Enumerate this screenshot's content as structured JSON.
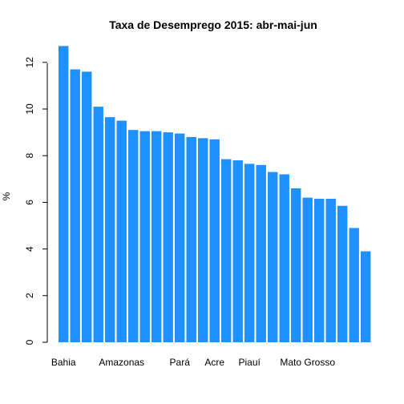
{
  "chart_data": {
    "type": "bar",
    "title": "Taxa de Desemprego 2015: abr-mai-jun",
    "xlabel": "",
    "ylabel": "%",
    "ylim": [
      0,
      12.7
    ],
    "yticks": [
      0,
      2,
      4,
      6,
      8,
      10,
      12
    ],
    "bar_color": "#1E90FF",
    "categories": [
      "Bahia",
      "",
      "",
      "",
      "",
      "Amazonas",
      "",
      "",
      "",
      "",
      "Pará",
      "",
      "",
      "Acre",
      "",
      "",
      "Piauí",
      "",
      "",
      "",
      "",
      "Mato Grosso",
      "",
      "",
      "",
      "",
      ""
    ],
    "values": [
      12.7,
      11.7,
      11.6,
      10.1,
      9.65,
      9.5,
      9.1,
      9.05,
      9.05,
      9.0,
      8.95,
      8.8,
      8.75,
      8.7,
      7.85,
      7.8,
      7.65,
      7.6,
      7.3,
      7.2,
      6.6,
      6.2,
      6.15,
      6.15,
      5.85,
      4.9,
      3.9
    ]
  }
}
